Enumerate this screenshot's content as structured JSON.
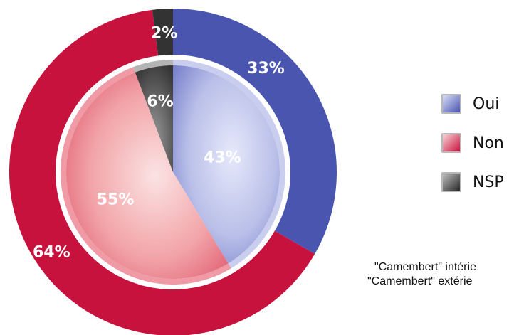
{
  "chart_data": {
    "type": "pie",
    "title": "",
    "outer": {
      "caption": "\"Camembert\" extérie",
      "slices": [
        {
          "category": "Oui",
          "value": 33,
          "label": "33%"
        },
        {
          "category": "Non",
          "value": 64,
          "label": "64%"
        },
        {
          "category": "NSP",
          "value": 2,
          "label": "2%"
        }
      ]
    },
    "inner": {
      "caption": "\"Camembert\" intérie",
      "slices": [
        {
          "category": "Oui",
          "value": 43,
          "label": "43%"
        },
        {
          "category": "Non",
          "value": 55,
          "label": "55%"
        },
        {
          "category": "NSP",
          "value": 6,
          "label": "6%"
        }
      ]
    },
    "legend": {
      "placement": "right",
      "items": [
        {
          "label": "Oui",
          "color": "#4a55b0"
        },
        {
          "label": "Non",
          "color": "#c8123e"
        },
        {
          "label": "NSP",
          "color": "#3a3a3a"
        }
      ]
    }
  },
  "colors": {
    "oui": "#4a55b0",
    "non": "#c8123e",
    "nsp": "#333333",
    "background": "#ffffff"
  }
}
